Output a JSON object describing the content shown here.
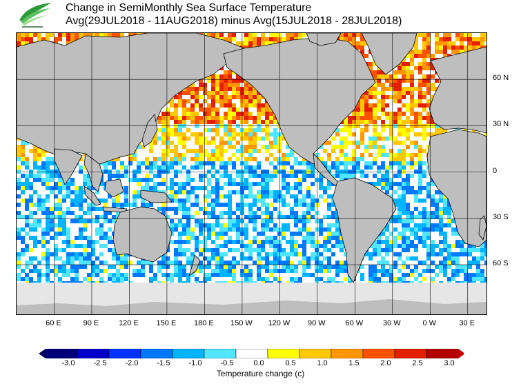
{
  "header": {
    "title": "Change in SemiMonthly Sea Surface Temperature",
    "subtitle": "Avg(29JUL2018 - 11AUG2018) minus Avg(15JUL2018 - 28JUL2018)",
    "logo_icon": "leaf-logo-icon"
  },
  "map": {
    "projection": "equirectangular",
    "lat_labels": [
      {
        "lat": 60,
        "text": "60 N"
      },
      {
        "lat": 30,
        "text": "30 N"
      },
      {
        "lat": 0,
        "text": "0"
      },
      {
        "lat": -30,
        "text": "30 S"
      },
      {
        "lat": -60,
        "text": "60 S"
      }
    ],
    "lon_labels": [
      {
        "lon": 60,
        "text": "60 E"
      },
      {
        "lon": 90,
        "text": "90 E"
      },
      {
        "lon": 120,
        "text": "120 E"
      },
      {
        "lon": 150,
        "text": "150 E"
      },
      {
        "lon": 180,
        "text": "180 E"
      },
      {
        "lon": 210,
        "text": "150 W"
      },
      {
        "lon": 240,
        "text": "120 W"
      },
      {
        "lon": 270,
        "text": "90 W"
      },
      {
        "lon": 300,
        "text": "60 W"
      },
      {
        "lon": 330,
        "text": "30 W"
      },
      {
        "lon": 360,
        "text": "0 W"
      },
      {
        "lon": 390,
        "text": "30 E"
      }
    ],
    "colors": {
      "land": "#bebebe",
      "ice": "#e6e6e6",
      "ocean_neutral": "#ffffff",
      "grid": "#000000"
    }
  },
  "colorbar": {
    "label": "Temperature change  (c)",
    "ticks": [
      "-3.0",
      "-2.5",
      "-2.0",
      "-1.5",
      "-1.0",
      "-0.5",
      "0.0",
      "0.5",
      "1.0",
      "1.5",
      "2.0",
      "2.5",
      "3.0"
    ],
    "colors": [
      "#00007a",
      "#0000c8",
      "#0032ff",
      "#0078ff",
      "#00b4ff",
      "#50e6ff",
      "#ffffff",
      "#ffff00",
      "#ffc800",
      "#ff9600",
      "#ff5000",
      "#e61e00",
      "#b40000"
    ],
    "under_color": "#00005a",
    "over_color": "#c80000"
  }
}
